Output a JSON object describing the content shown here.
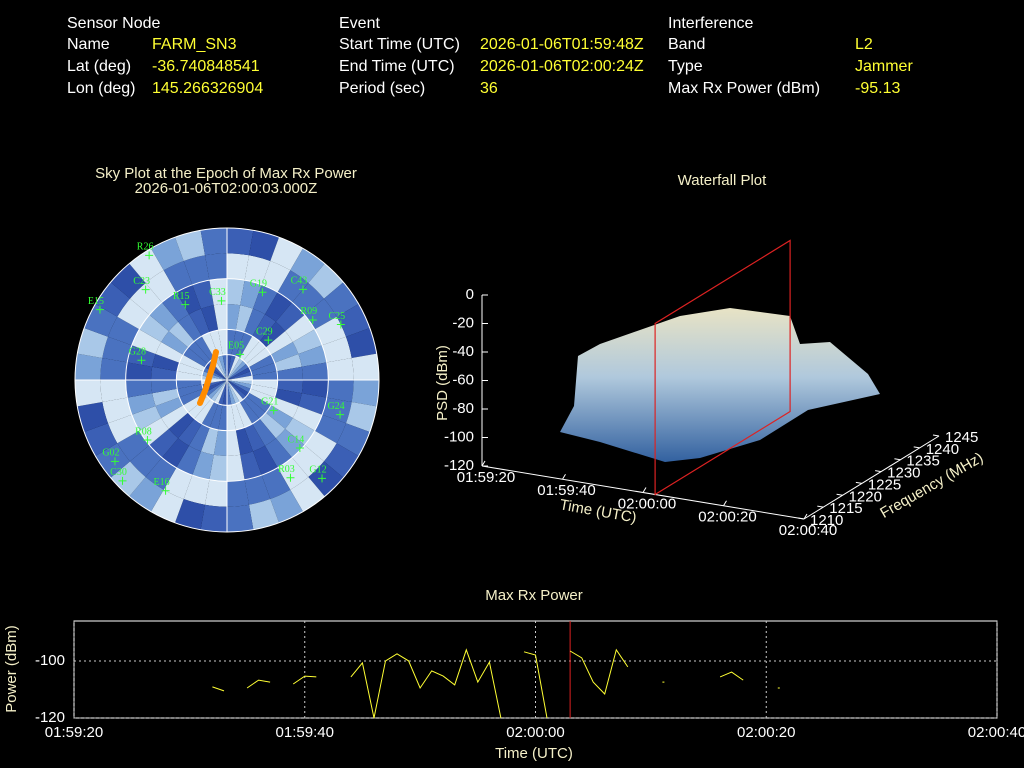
{
  "header": {
    "sections": [
      {
        "title": "Sensor Node",
        "rows": [
          [
            "Name",
            "FARM_SN3"
          ],
          [
            "Lat (deg)",
            -36.740848541
          ],
          [
            "Lon (deg)",
            145.266326904
          ]
        ]
      },
      {
        "title": "Event",
        "rows": [
          [
            "Start Time (UTC)",
            "2026-01-06T01:59:48Z"
          ],
          [
            "End Time (UTC)",
            "2026-01-06T02:00:24Z"
          ],
          [
            "Period (sec)",
            36
          ]
        ]
      },
      {
        "title": "Interference",
        "rows": [
          [
            "Band",
            "L2"
          ],
          [
            "Type",
            "Jammer"
          ],
          [
            "Max Rx Power (dBm)",
            -95.13
          ]
        ]
      }
    ]
  },
  "chart_data": [
    {
      "type": "skyplot",
      "title": "Sky Plot at the Epoch of Max Rx Power",
      "subtitle": "2026-01-06T02:00:03.000Z",
      "rings": [
        30,
        60,
        75
      ],
      "satellites": {
        "color": "#33ff33",
        "names": [
          "R26",
          "G02",
          "C30",
          "E16",
          "R03",
          "G12",
          "G24",
          "C14",
          "C43",
          "C25",
          "R08",
          "C29",
          "R09",
          "G28",
          "E05",
          "G21",
          "E15",
          "C23",
          "R15",
          "C33",
          "G19"
        ],
        "azimuth": [
          328,
          234,
          226,
          209,
          147,
          136,
          107,
          133,
          40,
          64,
          233,
          46,
          55,
          283,
          27,
          123,
          299,
          318,
          331,
          356,
          22
        ],
        "elevation": [
          3,
          8,
          4,
          15,
          21,
          9,
          20,
          31,
          20,
          15,
          31,
          56,
          28,
          38,
          73,
          57,
          4,
          18,
          39,
          43,
          34
        ]
      },
      "track": {
        "color": "#ff8c00",
        "azimuth": [
          229.6,
          245.6,
          276.3,
          317,
          338.6
        ],
        "elevation": [
          69.0,
          76,
          79.3,
          77.9,
          72.2
        ]
      }
    },
    {
      "type": "surface",
      "title": "Waterfall Plot",
      "xlabel": "Time (UTC)",
      "ylabel": "Frequency (MHz)",
      "zlabel": "PSD (dBm)",
      "xlim": [
        "01:59:20",
        "02:00:40"
      ],
      "xticks": [
        "01:59:20",
        "01:59:40",
        "02:00:00",
        "02:00:20",
        "02:00:40"
      ],
      "ylim": [
        1210,
        1245
      ],
      "yticks": [
        1210,
        1215,
        1220,
        1225,
        1230,
        1235,
        1240,
        1245
      ],
      "zlim": [
        -120,
        0
      ],
      "zticks": [
        0,
        -20,
        -40,
        -60,
        -80,
        -100,
        -120
      ],
      "cursor": "02:00:03",
      "cursor_color": "#dd2222"
    },
    {
      "type": "line",
      "title": "Max Rx Power",
      "xlabel": "Time (UTC)",
      "ylabel": "Power (dBm)",
      "xlim": [
        "01:59:20",
        "02:00:40"
      ],
      "xticks": [
        "01:59:20",
        "01:59:40",
        "02:00:00",
        "02:00:20",
        "02:00:40"
      ],
      "ylim": [
        -120,
        -86
      ],
      "yticks": [
        -100,
        -120
      ],
      "grid": true,
      "cursor": "02:00:03",
      "cursor_color": "#dd2222",
      "series": [
        {
          "color": "#ffff33",
          "x": [
            "01:59:32",
            "01:59:33",
            "01:59:34",
            "01:59:35",
            "01:59:36",
            "01:59:37",
            "01:59:38",
            "01:59:39",
            "01:59:40",
            "01:59:41",
            "01:59:42",
            "01:59:43",
            "01:59:44",
            "01:59:45",
            "01:59:46",
            "01:59:47",
            "01:59:48",
            "01:59:49",
            "01:59:50",
            "01:59:51",
            "01:59:52",
            "01:59:53",
            "01:59:54",
            "01:59:55",
            "01:59:56",
            "01:59:57",
            "01:59:58",
            "01:59:59",
            "02:00:00",
            "02:00:01",
            "02:00:02",
            "02:00:03",
            "02:00:04",
            "02:00:05",
            "02:00:06",
            "02:00:07",
            "02:00:08",
            "02:00:09",
            "02:00:10",
            "02:00:11",
            "02:00:12",
            "02:00:13",
            "02:00:14",
            "02:00:15",
            "02:00:16",
            "02:00:17",
            "02:00:18",
            "02:00:19",
            "02:00:20",
            "02:00:21"
          ],
          "values": [
            -109.1,
            -110.5,
            null,
            -109.5,
            -106.7,
            -107.4,
            null,
            -108.1,
            -105.3,
            -105.6,
            null,
            null,
            -105.6,
            -100.7,
            -120,
            -100.0,
            -97.5,
            -100.0,
            -109.5,
            -103.5,
            -105.3,
            -108.4,
            -96.1,
            -107.4,
            -100.4,
            -120,
            null,
            -96.8,
            -97.9,
            -120,
            null,
            -96.5,
            -98.9,
            -107.4,
            -111.6,
            -96.1,
            -102.1,
            null,
            null,
            -107.4,
            null,
            null,
            null,
            null,
            -105.6,
            -103.9,
            -106.7,
            null,
            null,
            -109.5
          ]
        }
      ]
    }
  ]
}
